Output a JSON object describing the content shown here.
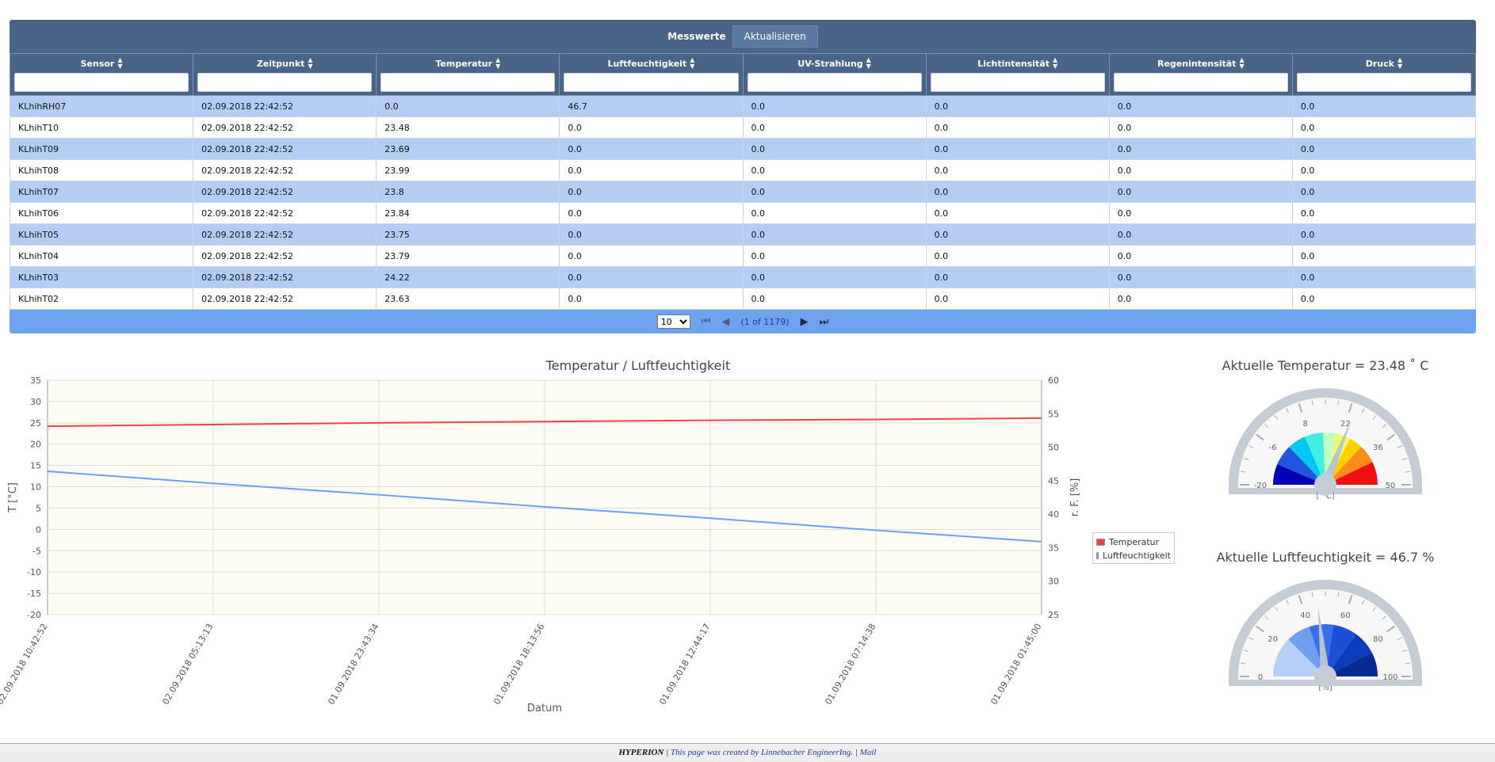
{
  "panel": {
    "title": "Messwerte",
    "refresh_label": "Aktualisieren"
  },
  "table": {
    "columns": [
      "Sensor",
      "Zeitpunkt",
      "Temperatur",
      "Luftfeuchtigkeit",
      "UV-Strahlung",
      "Lichtintensität",
      "Regenintensität",
      "Druck"
    ],
    "rows": [
      [
        "KLhihRH07",
        "02.09.2018 22:42:52",
        "0.0",
        "46.7",
        "0.0",
        "0.0",
        "0.0",
        "0.0"
      ],
      [
        "KLhihT10",
        "02.09.2018 22:42:52",
        "23.48",
        "0.0",
        "0.0",
        "0.0",
        "0.0",
        "0.0"
      ],
      [
        "KLhihT09",
        "02.09.2018 22:42:52",
        "23.69",
        "0.0",
        "0.0",
        "0.0",
        "0.0",
        "0.0"
      ],
      [
        "KLhihT08",
        "02.09.2018 22:42:52",
        "23.99",
        "0.0",
        "0.0",
        "0.0",
        "0.0",
        "0.0"
      ],
      [
        "KLhihT07",
        "02.09.2018 22:42:52",
        "23.8",
        "0.0",
        "0.0",
        "0.0",
        "0.0",
        "0.0"
      ],
      [
        "KLhihT06",
        "02.09.2018 22:42:52",
        "23.84",
        "0.0",
        "0.0",
        "0.0",
        "0.0",
        "0.0"
      ],
      [
        "KLhihT05",
        "02.09.2018 22:42:52",
        "23.75",
        "0.0",
        "0.0",
        "0.0",
        "0.0",
        "0.0"
      ],
      [
        "KLhihT04",
        "02.09.2018 22:42:52",
        "23.79",
        "0.0",
        "0.0",
        "0.0",
        "0.0",
        "0.0"
      ],
      [
        "KLhihT03",
        "02.09.2018 22:42:52",
        "24.22",
        "0.0",
        "0.0",
        "0.0",
        "0.0",
        "0.0"
      ],
      [
        "KLhihT02",
        "02.09.2018 22:42:52",
        "23.63",
        "0.0",
        "0.0",
        "0.0",
        "0.0",
        "0.0"
      ]
    ]
  },
  "pager": {
    "rows_per_page": "10",
    "page_info": "(1 of 1179)"
  },
  "chart_data": {
    "type": "line",
    "title": "Temperatur / Luftfeuchtigkeit",
    "xlabel": "Datum",
    "ylabel": "T [°C]",
    "y2label": "r. F. [%]",
    "x": [
      "02.09.2018 10:42:52",
      "02.09.2018 05:13:13",
      "01.09.2018 23:43:34",
      "01.09.2018 18:13:56",
      "01.09.2018 12:44:17",
      "01.09.2018 07:14:38",
      "01.09.2018 01:45:00"
    ],
    "ylim": [
      -20,
      35
    ],
    "y_ticks": [
      35,
      30,
      25,
      20,
      15,
      10,
      5,
      0,
      -5,
      -10,
      -15,
      -20
    ],
    "y2lim": [
      25,
      60
    ],
    "y2_ticks": [
      60,
      55,
      50,
      45,
      40,
      35,
      30,
      25
    ],
    "series": [
      {
        "name": "Temperatur",
        "axis": "left",
        "color": "#ee4444",
        "values": [
          24.2,
          24.6,
          25.0,
          25.3,
          25.6,
          25.8,
          26.1
        ]
      },
      {
        "name": "Luftfeuchtigkeit",
        "axis": "right",
        "color": "#6d9ef0",
        "values": [
          46.4,
          44.6,
          42.9,
          41.1,
          39.4,
          37.6,
          35.9
        ]
      }
    ],
    "legend_position": "right",
    "grid": true
  },
  "gauges": [
    {
      "title": "Aktuelle Temperatur = 23.48 ˚ C",
      "min": -20,
      "max": 50,
      "value": 23.48,
      "labels": [
        "-20",
        "-6",
        "8",
        "22",
        "36",
        "50"
      ],
      "unit": "[ ˚C]",
      "bands": [
        {
          "from": -20,
          "to": -11,
          "color": "#0000b5"
        },
        {
          "from": -11,
          "to": -2,
          "color": "#2255dd"
        },
        {
          "from": -2,
          "to": 6,
          "color": "#00c8f0"
        },
        {
          "from": 6,
          "to": 14,
          "color": "#3ff0e0"
        },
        {
          "from": 14,
          "to": 20,
          "color": "#bfffbf"
        },
        {
          "from": 20,
          "to": 26,
          "color": "#f0ff60"
        },
        {
          "from": 26,
          "to": 32,
          "color": "#ffd000"
        },
        {
          "from": 32,
          "to": 40,
          "color": "#ff8c1a"
        },
        {
          "from": 40,
          "to": 50,
          "color": "#ee1111"
        }
      ]
    },
    {
      "title": "Aktuelle Luftfeuchtigkeit = 46.7 %",
      "min": 0,
      "max": 100,
      "value": 46.7,
      "labels": [
        "0",
        "20",
        "40",
        "60",
        "80",
        "100"
      ],
      "unit": "[%]",
      "bands": [
        {
          "from": 0,
          "to": 25,
          "color": "#b6cff8"
        },
        {
          "from": 25,
          "to": 40,
          "color": "#6f9ff0"
        },
        {
          "from": 40,
          "to": 55,
          "color": "#3a6ee8"
        },
        {
          "from": 55,
          "to": 70,
          "color": "#1a4fd8"
        },
        {
          "from": 70,
          "to": 85,
          "color": "#0d3cb8"
        },
        {
          "from": 85,
          "to": 100,
          "color": "#062a90"
        }
      ]
    }
  ],
  "footer": {
    "brand": "HYPERION",
    "separator": " | ",
    "credit": "This page was created by Linnebacher EngineerIng.",
    "separator2": " | ",
    "mail_label": "Mail"
  }
}
